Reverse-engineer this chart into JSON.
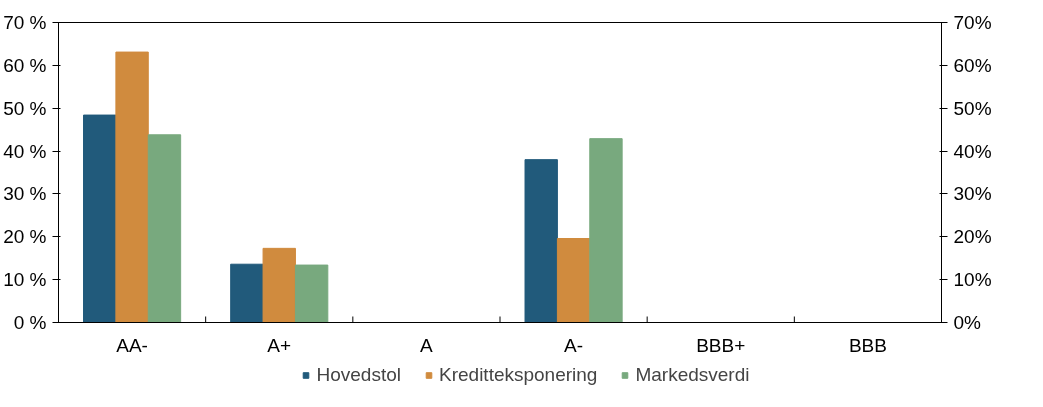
{
  "chart_data": {
    "type": "bar",
    "categories": [
      "AA-",
      "A+",
      "A",
      "A-",
      "BBB+",
      "BBB"
    ],
    "series": [
      {
        "name": "Hovedstol",
        "color": "#215a7b",
        "values": [
          48.4,
          13.6,
          0,
          38.0,
          0,
          0
        ]
      },
      {
        "name": "Kreditteksponering",
        "color": "#d08b3e",
        "values": [
          63.1,
          17.3,
          0,
          19.6,
          0,
          0
        ]
      },
      {
        "name": "Markedsverdi",
        "color": "#78a97e",
        "values": [
          43.8,
          13.4,
          0,
          42.9,
          0,
          0
        ]
      }
    ],
    "ylim": [
      0,
      70
    ],
    "yticks": [
      {
        "value": 0,
        "label": "0 %"
      },
      {
        "value": 10,
        "label": "10 %"
      },
      {
        "value": 20,
        "label": "20 %"
      },
      {
        "value": 30,
        "label": "30 %"
      },
      {
        "value": 40,
        "label": "40 %"
      },
      {
        "value": 50,
        "label": "50 %"
      },
      {
        "value": 60,
        "label": "60 %"
      },
      {
        "value": 70,
        "label": "70 %"
      }
    ],
    "y2lim": [
      0,
      70
    ],
    "y2ticks": [
      {
        "value": 0,
        "label": "0%"
      },
      {
        "value": 10,
        "label": "10%"
      },
      {
        "value": 20,
        "label": "20%"
      },
      {
        "value": 30,
        "label": "30%"
      },
      {
        "value": 40,
        "label": "40%"
      },
      {
        "value": 50,
        "label": "50%"
      },
      {
        "value": 60,
        "label": "60%"
      },
      {
        "value": 70,
        "label": "70%"
      }
    ],
    "grid": false,
    "legend": "bottom"
  }
}
